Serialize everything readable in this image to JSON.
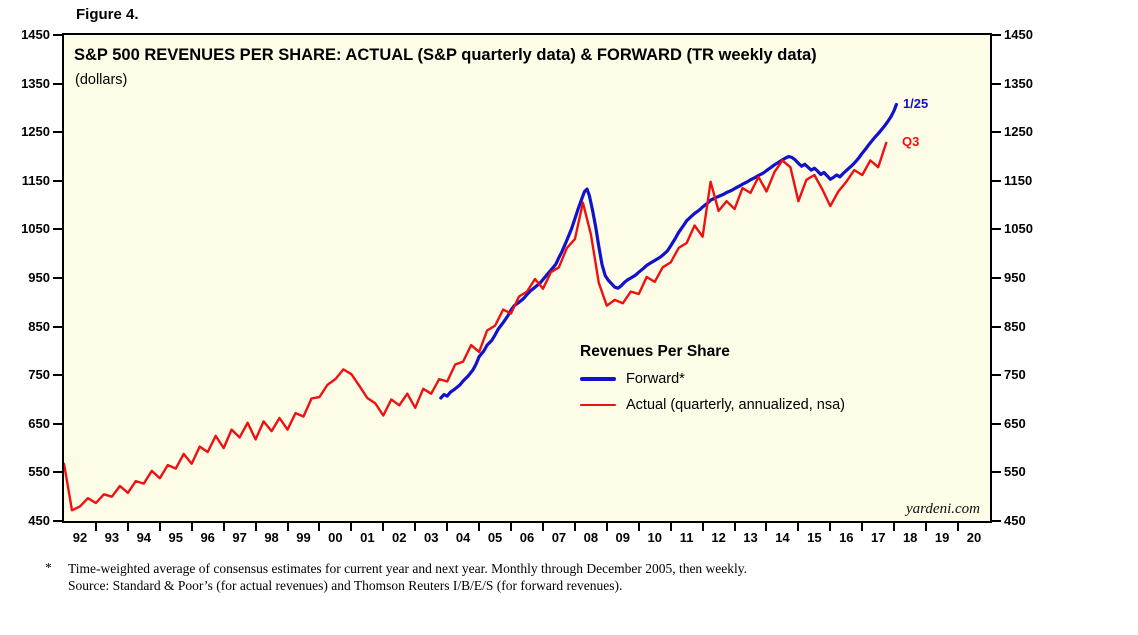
{
  "figure_label": "Figure 4.",
  "chart": {
    "title": "S&P 500 REVENUES PER SHARE: ACTUAL (S&P quarterly data) & FORWARD (TR weekly data)",
    "subtitle": "(dollars)",
    "watermark": "yardeni.com",
    "legend": {
      "title": "Revenues Per Share",
      "items": [
        {
          "label": "Forward*",
          "color": "#1212CC"
        },
        {
          "label": "Actual (quarterly, annualized, nsa)",
          "color": "#EE1111"
        }
      ]
    }
  },
  "footnote": {
    "marker": "*",
    "line1": "Time-weighted average of consensus estimates for current year and next year. Monthly through December 2005, then weekly.",
    "line2": "Source: Standard & Poor’s (for actual revenues) and Thomson Reuters I/B/E/S (for forward revenues)."
  },
  "colors": {
    "plot_bg": "#FDFCE6",
    "forward": "#1212CC",
    "actual": "#EE1111"
  },
  "chart_data": {
    "type": "line",
    "title": "S&P 500 REVENUES PER SHARE: ACTUAL (S&P quarterly data) & FORWARD (TR weekly data)",
    "ylabel": "dollars",
    "xlim": [
      1992,
      2021
    ],
    "ylim": [
      450,
      1450
    ],
    "ytick_step": 100,
    "yticks": [
      450,
      550,
      650,
      750,
      850,
      950,
      1050,
      1150,
      1250,
      1350,
      1450
    ],
    "x_year_labels": [
      "92",
      "93",
      "94",
      "95",
      "96",
      "97",
      "98",
      "99",
      "00",
      "01",
      "02",
      "03",
      "04",
      "05",
      "06",
      "07",
      "08",
      "09",
      "10",
      "11",
      "12",
      "13",
      "14",
      "15",
      "16",
      "17",
      "18",
      "19",
      "20"
    ],
    "grid": false,
    "legend_position": "inside-center-right",
    "series": [
      {
        "name": "Forward*",
        "color": "#1212CC",
        "width": 3.2,
        "end_label": "1/25",
        "points": [
          [
            2003.8,
            703
          ],
          [
            2003.9,
            710
          ],
          [
            2004.0,
            707
          ],
          [
            2004.1,
            715
          ],
          [
            2004.25,
            722
          ],
          [
            2004.4,
            730
          ],
          [
            2004.5,
            738
          ],
          [
            2004.65,
            748
          ],
          [
            2004.8,
            760
          ],
          [
            2004.9,
            772
          ],
          [
            2005.0,
            788
          ],
          [
            2005.15,
            800
          ],
          [
            2005.25,
            812
          ],
          [
            2005.4,
            822
          ],
          [
            2005.5,
            833
          ],
          [
            2005.6,
            845
          ],
          [
            2005.75,
            858
          ],
          [
            2005.9,
            872
          ],
          [
            2006.0,
            884
          ],
          [
            2006.1,
            893
          ],
          [
            2006.25,
            900
          ],
          [
            2006.4,
            908
          ],
          [
            2006.5,
            916
          ],
          [
            2006.6,
            923
          ],
          [
            2006.75,
            931
          ],
          [
            2006.9,
            939
          ],
          [
            2007.0,
            947
          ],
          [
            2007.1,
            955
          ],
          [
            2007.25,
            966
          ],
          [
            2007.4,
            978
          ],
          [
            2007.5,
            992
          ],
          [
            2007.6,
            1005
          ],
          [
            2007.75,
            1028
          ],
          [
            2007.9,
            1052
          ],
          [
            2008.0,
            1072
          ],
          [
            2008.1,
            1092
          ],
          [
            2008.2,
            1110
          ],
          [
            2008.3,
            1128
          ],
          [
            2008.38,
            1133
          ],
          [
            2008.45,
            1120
          ],
          [
            2008.55,
            1090
          ],
          [
            2008.65,
            1055
          ],
          [
            2008.75,
            1015
          ],
          [
            2008.85,
            978
          ],
          [
            2008.95,
            955
          ],
          [
            2009.05,
            945
          ],
          [
            2009.15,
            938
          ],
          [
            2009.25,
            931
          ],
          [
            2009.35,
            929
          ],
          [
            2009.45,
            934
          ],
          [
            2009.55,
            941
          ],
          [
            2009.65,
            946
          ],
          [
            2009.75,
            950
          ],
          [
            2009.9,
            956
          ],
          [
            2010.0,
            962
          ],
          [
            2010.15,
            970
          ],
          [
            2010.25,
            976
          ],
          [
            2010.4,
            982
          ],
          [
            2010.5,
            986
          ],
          [
            2010.65,
            992
          ],
          [
            2010.75,
            997
          ],
          [
            2010.9,
            1006
          ],
          [
            2011.0,
            1016
          ],
          [
            2011.15,
            1032
          ],
          [
            2011.25,
            1044
          ],
          [
            2011.4,
            1058
          ],
          [
            2011.5,
            1068
          ],
          [
            2011.65,
            1077
          ],
          [
            2011.75,
            1083
          ],
          [
            2011.9,
            1090
          ],
          [
            2012.0,
            1096
          ],
          [
            2012.15,
            1104
          ],
          [
            2012.25,
            1110
          ],
          [
            2012.4,
            1115
          ],
          [
            2012.5,
            1118
          ],
          [
            2012.65,
            1122
          ],
          [
            2012.75,
            1126
          ],
          [
            2012.9,
            1130
          ],
          [
            2013.0,
            1134
          ],
          [
            2013.15,
            1139
          ],
          [
            2013.25,
            1143
          ],
          [
            2013.4,
            1148
          ],
          [
            2013.5,
            1152
          ],
          [
            2013.65,
            1157
          ],
          [
            2013.75,
            1161
          ],
          [
            2013.9,
            1166
          ],
          [
            2014.0,
            1171
          ],
          [
            2014.15,
            1178
          ],
          [
            2014.25,
            1183
          ],
          [
            2014.4,
            1189
          ],
          [
            2014.5,
            1193
          ],
          [
            2014.6,
            1197
          ],
          [
            2014.7,
            1200
          ],
          [
            2014.8,
            1198
          ],
          [
            2014.9,
            1193
          ],
          [
            2015.0,
            1186
          ],
          [
            2015.1,
            1180
          ],
          [
            2015.2,
            1184
          ],
          [
            2015.3,
            1178
          ],
          [
            2015.4,
            1172
          ],
          [
            2015.5,
            1176
          ],
          [
            2015.6,
            1170
          ],
          [
            2015.7,
            1163
          ],
          [
            2015.8,
            1167
          ],
          [
            2015.9,
            1160
          ],
          [
            2016.0,
            1153
          ],
          [
            2016.1,
            1157
          ],
          [
            2016.2,
            1162
          ],
          [
            2016.3,
            1158
          ],
          [
            2016.4,
            1165
          ],
          [
            2016.5,
            1171
          ],
          [
            2016.6,
            1177
          ],
          [
            2016.7,
            1183
          ],
          [
            2016.8,
            1190
          ],
          [
            2016.9,
            1198
          ],
          [
            2017.0,
            1207
          ],
          [
            2017.1,
            1215
          ],
          [
            2017.2,
            1224
          ],
          [
            2017.3,
            1232
          ],
          [
            2017.4,
            1240
          ],
          [
            2017.5,
            1247
          ],
          [
            2017.6,
            1255
          ],
          [
            2017.7,
            1263
          ],
          [
            2017.8,
            1272
          ],
          [
            2017.9,
            1282
          ],
          [
            2018.0,
            1295
          ],
          [
            2018.07,
            1307
          ]
        ]
      },
      {
        "name": "Actual (quarterly, annualized, nsa)",
        "color": "#EE1111",
        "width": 2.4,
        "end_label": "Q3",
        "points": [
          [
            1992.0,
            568
          ],
          [
            1992.25,
            472
          ],
          [
            1992.5,
            480
          ],
          [
            1992.75,
            497
          ],
          [
            1993.0,
            487
          ],
          [
            1993.25,
            505
          ],
          [
            1993.5,
            500
          ],
          [
            1993.75,
            522
          ],
          [
            1994.0,
            508
          ],
          [
            1994.25,
            532
          ],
          [
            1994.5,
            527
          ],
          [
            1994.75,
            553
          ],
          [
            1995.0,
            538
          ],
          [
            1995.25,
            565
          ],
          [
            1995.5,
            558
          ],
          [
            1995.75,
            588
          ],
          [
            1996.0,
            568
          ],
          [
            1996.25,
            603
          ],
          [
            1996.5,
            592
          ],
          [
            1996.75,
            625
          ],
          [
            1997.0,
            600
          ],
          [
            1997.25,
            638
          ],
          [
            1997.5,
            622
          ],
          [
            1997.75,
            652
          ],
          [
            1998.0,
            618
          ],
          [
            1998.25,
            655
          ],
          [
            1998.5,
            635
          ],
          [
            1998.75,
            662
          ],
          [
            1999.0,
            638
          ],
          [
            1999.25,
            672
          ],
          [
            1999.5,
            665
          ],
          [
            1999.75,
            702
          ],
          [
            2000.0,
            705
          ],
          [
            2000.25,
            730
          ],
          [
            2000.5,
            742
          ],
          [
            2000.75,
            762
          ],
          [
            2001.0,
            752
          ],
          [
            2001.25,
            728
          ],
          [
            2001.5,
            703
          ],
          [
            2001.75,
            692
          ],
          [
            2002.0,
            667
          ],
          [
            2002.25,
            700
          ],
          [
            2002.5,
            688
          ],
          [
            2002.75,
            712
          ],
          [
            2003.0,
            683
          ],
          [
            2003.25,
            722
          ],
          [
            2003.5,
            712
          ],
          [
            2003.75,
            742
          ],
          [
            2004.0,
            737
          ],
          [
            2004.25,
            772
          ],
          [
            2004.5,
            778
          ],
          [
            2004.75,
            812
          ],
          [
            2005.0,
            798
          ],
          [
            2005.25,
            842
          ],
          [
            2005.5,
            852
          ],
          [
            2005.75,
            885
          ],
          [
            2006.0,
            877
          ],
          [
            2006.25,
            912
          ],
          [
            2006.5,
            922
          ],
          [
            2006.75,
            948
          ],
          [
            2007.0,
            928
          ],
          [
            2007.25,
            962
          ],
          [
            2007.5,
            972
          ],
          [
            2007.75,
            1012
          ],
          [
            2008.0,
            1030
          ],
          [
            2008.25,
            1105
          ],
          [
            2008.5,
            1040
          ],
          [
            2008.75,
            940
          ],
          [
            2009.0,
            893
          ],
          [
            2009.25,
            905
          ],
          [
            2009.5,
            898
          ],
          [
            2009.75,
            922
          ],
          [
            2010.0,
            917
          ],
          [
            2010.25,
            952
          ],
          [
            2010.5,
            942
          ],
          [
            2010.75,
            972
          ],
          [
            2011.0,
            982
          ],
          [
            2011.25,
            1012
          ],
          [
            2011.5,
            1022
          ],
          [
            2011.75,
            1058
          ],
          [
            2012.0,
            1035
          ],
          [
            2012.25,
            1148
          ],
          [
            2012.5,
            1088
          ],
          [
            2012.75,
            1108
          ],
          [
            2013.0,
            1092
          ],
          [
            2013.25,
            1135
          ],
          [
            2013.5,
            1125
          ],
          [
            2013.75,
            1158
          ],
          [
            2014.0,
            1128
          ],
          [
            2014.25,
            1168
          ],
          [
            2014.5,
            1192
          ],
          [
            2014.75,
            1178
          ],
          [
            2015.0,
            1108
          ],
          [
            2015.25,
            1152
          ],
          [
            2015.5,
            1162
          ],
          [
            2015.75,
            1132
          ],
          [
            2016.0,
            1098
          ],
          [
            2016.25,
            1128
          ],
          [
            2016.5,
            1148
          ],
          [
            2016.75,
            1172
          ],
          [
            2017.0,
            1162
          ],
          [
            2017.25,
            1192
          ],
          [
            2017.5,
            1178
          ],
          [
            2017.75,
            1228
          ]
        ]
      }
    ],
    "annotations": [
      {
        "text": "1/25",
        "x": 2018.18,
        "y": 1308,
        "color": "#1212CC"
      },
      {
        "text": "Q3",
        "x": 2018.15,
        "y": 1230,
        "color": "#EE1111"
      }
    ]
  }
}
